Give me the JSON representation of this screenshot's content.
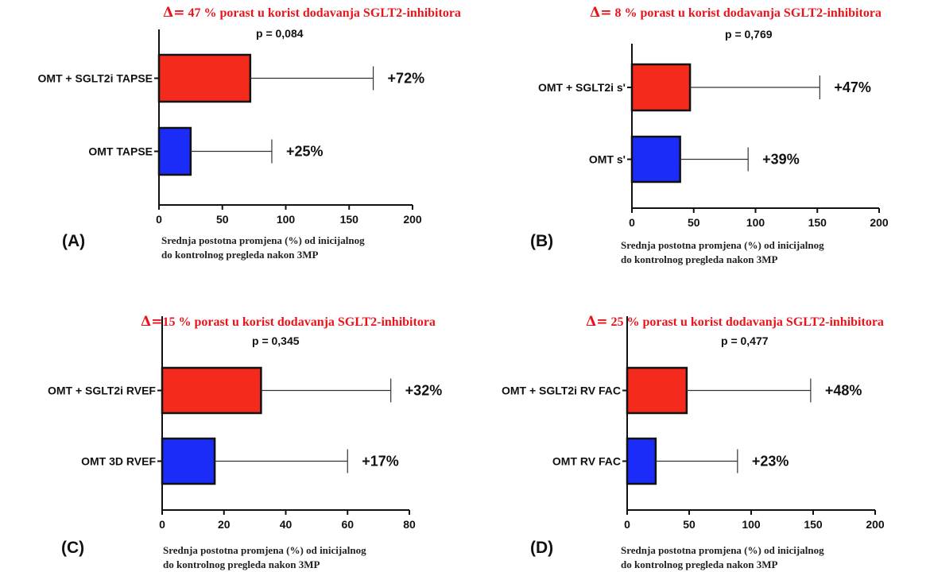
{
  "colors": {
    "red": "#f42a1c",
    "blue": "#1c2cf8",
    "delta": "#e8141c"
  },
  "xlabel_line1": "Srednja postotna promjena (%) od inicijalnog",
  "xlabel_line2": "do kontrolnog pregleda nakon 3MP",
  "panels": [
    {
      "label": "(A)",
      "delta_symbol": "Δ=",
      "delta_text": " 47 % porast u korist dodavanja SGLT2-inhibitora",
      "p_value": "p = 0,084"
    },
    {
      "label": "(B)",
      "delta_symbol": "Δ=",
      "delta_text": " 8  % porast u korist dodavanja SGLT2-inhibitora",
      "p_value": "p = 0,769"
    },
    {
      "label": "(C)",
      "delta_symbol": "Δ=",
      "delta_text": "15 % porast u korist dodavanja SGLT2-inhibitora",
      "p_value": "p = 0,345"
    },
    {
      "label": "(D)",
      "delta_symbol": "Δ=",
      "delta_text": " 25 % porast u korist dodavanja SGLT2-inhibitora",
      "p_value": "p = 0,477"
    }
  ],
  "chart_data": [
    {
      "type": "bar",
      "orientation": "horizontal",
      "categories": [
        "OMT + SGLT2i TAPSE",
        "OMT TAPSE"
      ],
      "values": [
        72,
        25
      ],
      "error_upper": [
        169,
        89
      ],
      "data_labels": [
        "+72%",
        "+25%"
      ],
      "colors": [
        "#f42a1c",
        "#1c2cf8"
      ],
      "xlim": [
        0,
        200
      ],
      "xticks": [
        0,
        50,
        100,
        150,
        200
      ],
      "xlabel": "Srednja postotna promjena (%) od inicijalnog do kontrolnog pregleda nakon 3MP"
    },
    {
      "type": "bar",
      "orientation": "horizontal",
      "categories": [
        "OMT + SGLT2i s'",
        "OMT s'"
      ],
      "values": [
        47,
        39
      ],
      "error_upper": [
        152,
        94
      ],
      "data_labels": [
        "+47%",
        "+39%"
      ],
      "colors": [
        "#f42a1c",
        "#1c2cf8"
      ],
      "xlim": [
        0,
        200
      ],
      "xticks": [
        0,
        50,
        100,
        150,
        200
      ],
      "xlabel": "Srednja postotna promjena (%) od inicijalnog do kontrolnog pregleda nakon 3MP"
    },
    {
      "type": "bar",
      "orientation": "horizontal",
      "categories": [
        "OMT + SGLT2i RVEF",
        "OMT 3D RVEF"
      ],
      "values": [
        32,
        17
      ],
      "error_upper": [
        74,
        60
      ],
      "data_labels": [
        "+32%",
        "+17%"
      ],
      "colors": [
        "#f42a1c",
        "#1c2cf8"
      ],
      "xlim": [
        0,
        80
      ],
      "xticks": [
        0,
        20,
        40,
        60,
        80
      ],
      "xlabel": "Srednja postotna promjena (%) od inicijalnog do kontrolnog pregleda nakon 3MP"
    },
    {
      "type": "bar",
      "orientation": "horizontal",
      "categories": [
        "OMT + SGLT2i RV FAC",
        "OMT RV FAC"
      ],
      "values": [
        48,
        23
      ],
      "error_upper": [
        148,
        89
      ],
      "data_labels": [
        "+48%",
        "+23%"
      ],
      "colors": [
        "#f42a1c",
        "#1c2cf8"
      ],
      "xlim": [
        0,
        200
      ],
      "xticks": [
        0,
        50,
        100,
        150,
        200
      ],
      "xlabel": "Srednja postotna promjena (%) od inicijalnog do kontrolnog pregleda nakon 3MP"
    }
  ]
}
